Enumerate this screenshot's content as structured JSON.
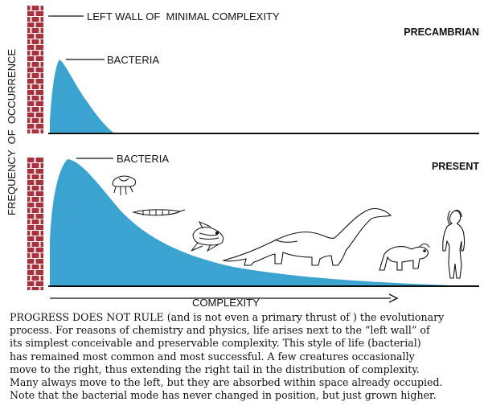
{
  "colors": {
    "bacteria_fill": "#3aa3cf",
    "wall_brick": "#a8323c",
    "wall_mortar": "#ffffff",
    "ink": "#111111"
  },
  "labels": {
    "left_wall": "LEFT WALL OF  MINIMAL COMPLEXITY",
    "y_axis": "FREQUENCY  OF  OCCURRENCE",
    "x_axis": "COMPLEXITY"
  },
  "panels": [
    {
      "era": "PRECAMBRIAN",
      "bacteria_label": "BACTERIA"
    },
    {
      "era": "PRESENT",
      "bacteria_label": "BACTERIA"
    }
  ],
  "organism_icons": [
    "jellyfish-icon",
    "trilobite-icon",
    "fish-icon",
    "dinosaur-icon",
    "baboon-icon",
    "human-icon"
  ],
  "caption": {
    "lines": [
      "PROGRESS DOES NOT RULE (and is not even a primary thrust of ) the evolutionary",
      "process. For reasons of chemistry and physics, life arises next to the “left wall” of",
      "its simplest conceivable and preservable complexity. This style of life (bacterial)",
      "has remained most common and most successful. A few creatures occasionally",
      "move to the right, thus extending the right tail in the distribution of complexity.",
      "Many always move to the left, but they are absorbed within space already occupied.",
      "Note that the bacterial mode has never changed in position, but just grown higher."
    ]
  }
}
